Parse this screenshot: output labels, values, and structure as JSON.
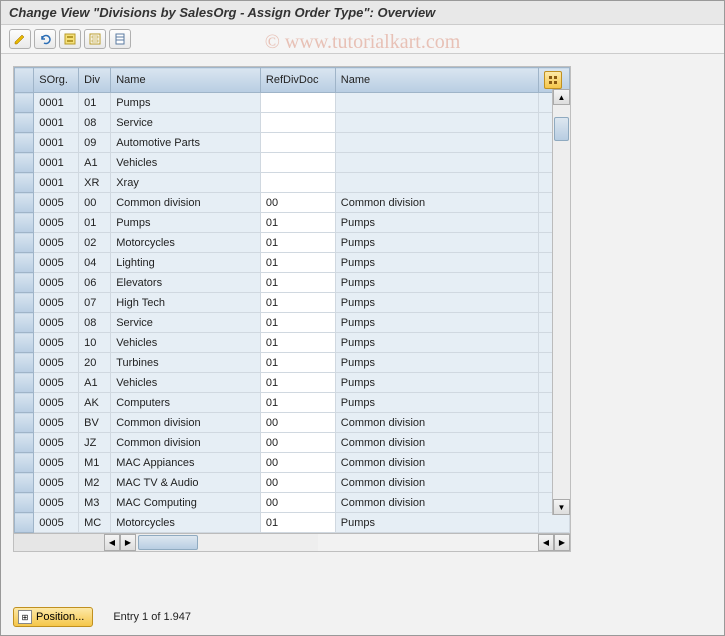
{
  "window": {
    "title": "Change View \"Divisions by SalesOrg - Assign Order Type\": Overview"
  },
  "toolbar": {
    "icons": [
      "pencil",
      "undo",
      "select-all",
      "deselect-all",
      "delimit"
    ]
  },
  "columns": {
    "sel": "",
    "sorg": "SOrg.",
    "div": "Div",
    "name1": "Name",
    "refdiv": "RefDivDoc",
    "name2": "Name",
    "cfg": ""
  },
  "rows": [
    {
      "sorg": "0001",
      "div": "01",
      "name1": "Pumps",
      "refdiv": "",
      "name2": ""
    },
    {
      "sorg": "0001",
      "div": "08",
      "name1": "Service",
      "refdiv": "",
      "name2": ""
    },
    {
      "sorg": "0001",
      "div": "09",
      "name1": "Automotive Parts",
      "refdiv": "",
      "name2": ""
    },
    {
      "sorg": "0001",
      "div": "A1",
      "name1": "Vehicles",
      "refdiv": "",
      "name2": ""
    },
    {
      "sorg": "0001",
      "div": "XR",
      "name1": "Xray",
      "refdiv": "",
      "name2": ""
    },
    {
      "sorg": "0005",
      "div": "00",
      "name1": "Common division",
      "refdiv": "00",
      "name2": "Common division"
    },
    {
      "sorg": "0005",
      "div": "01",
      "name1": "Pumps",
      "refdiv": "01",
      "name2": "Pumps"
    },
    {
      "sorg": "0005",
      "div": "02",
      "name1": "Motorcycles",
      "refdiv": "01",
      "name2": "Pumps"
    },
    {
      "sorg": "0005",
      "div": "04",
      "name1": "Lighting",
      "refdiv": "01",
      "name2": "Pumps"
    },
    {
      "sorg": "0005",
      "div": "06",
      "name1": "Elevators",
      "refdiv": "01",
      "name2": "Pumps"
    },
    {
      "sorg": "0005",
      "div": "07",
      "name1": "High Tech",
      "refdiv": "01",
      "name2": "Pumps"
    },
    {
      "sorg": "0005",
      "div": "08",
      "name1": "Service",
      "refdiv": "01",
      "name2": "Pumps"
    },
    {
      "sorg": "0005",
      "div": "10",
      "name1": "Vehicles",
      "refdiv": "01",
      "name2": "Pumps"
    },
    {
      "sorg": "0005",
      "div": "20",
      "name1": "Turbines",
      "refdiv": "01",
      "name2": "Pumps"
    },
    {
      "sorg": "0005",
      "div": "A1",
      "name1": "Vehicles",
      "refdiv": "01",
      "name2": "Pumps"
    },
    {
      "sorg": "0005",
      "div": "AK",
      "name1": "Computers",
      "refdiv": "01",
      "name2": "Pumps"
    },
    {
      "sorg": "0005",
      "div": "BV",
      "name1": "Common division",
      "refdiv": "00",
      "name2": "Common division"
    },
    {
      "sorg": "0005",
      "div": "JZ",
      "name1": "Common division",
      "refdiv": "00",
      "name2": "Common division"
    },
    {
      "sorg": "0005",
      "div": "M1",
      "name1": "MAC Appiances",
      "refdiv": "00",
      "name2": "Common division"
    },
    {
      "sorg": "0005",
      "div": "M2",
      "name1": "MAC TV & Audio",
      "refdiv": "00",
      "name2": "Common division"
    },
    {
      "sorg": "0005",
      "div": "M3",
      "name1": "MAC Computing",
      "refdiv": "00",
      "name2": "Common division"
    },
    {
      "sorg": "0005",
      "div": "MC",
      "name1": "Motorcycles",
      "refdiv": "01",
      "name2": "Pumps"
    }
  ],
  "footer": {
    "position_label": "Position...",
    "entry_info": "Entry 1 of 1.947"
  },
  "watermark": "© www.tutorialkart.com",
  "colors": {
    "header_bg_top": "#d9e5f0",
    "header_bg_bottom": "#b8cde2",
    "readonly_cell": "#e6eef5",
    "editable_cell": "#ffffff",
    "accent_btn_top": "#fde9a8",
    "accent_btn_bottom": "#f5c64a"
  }
}
